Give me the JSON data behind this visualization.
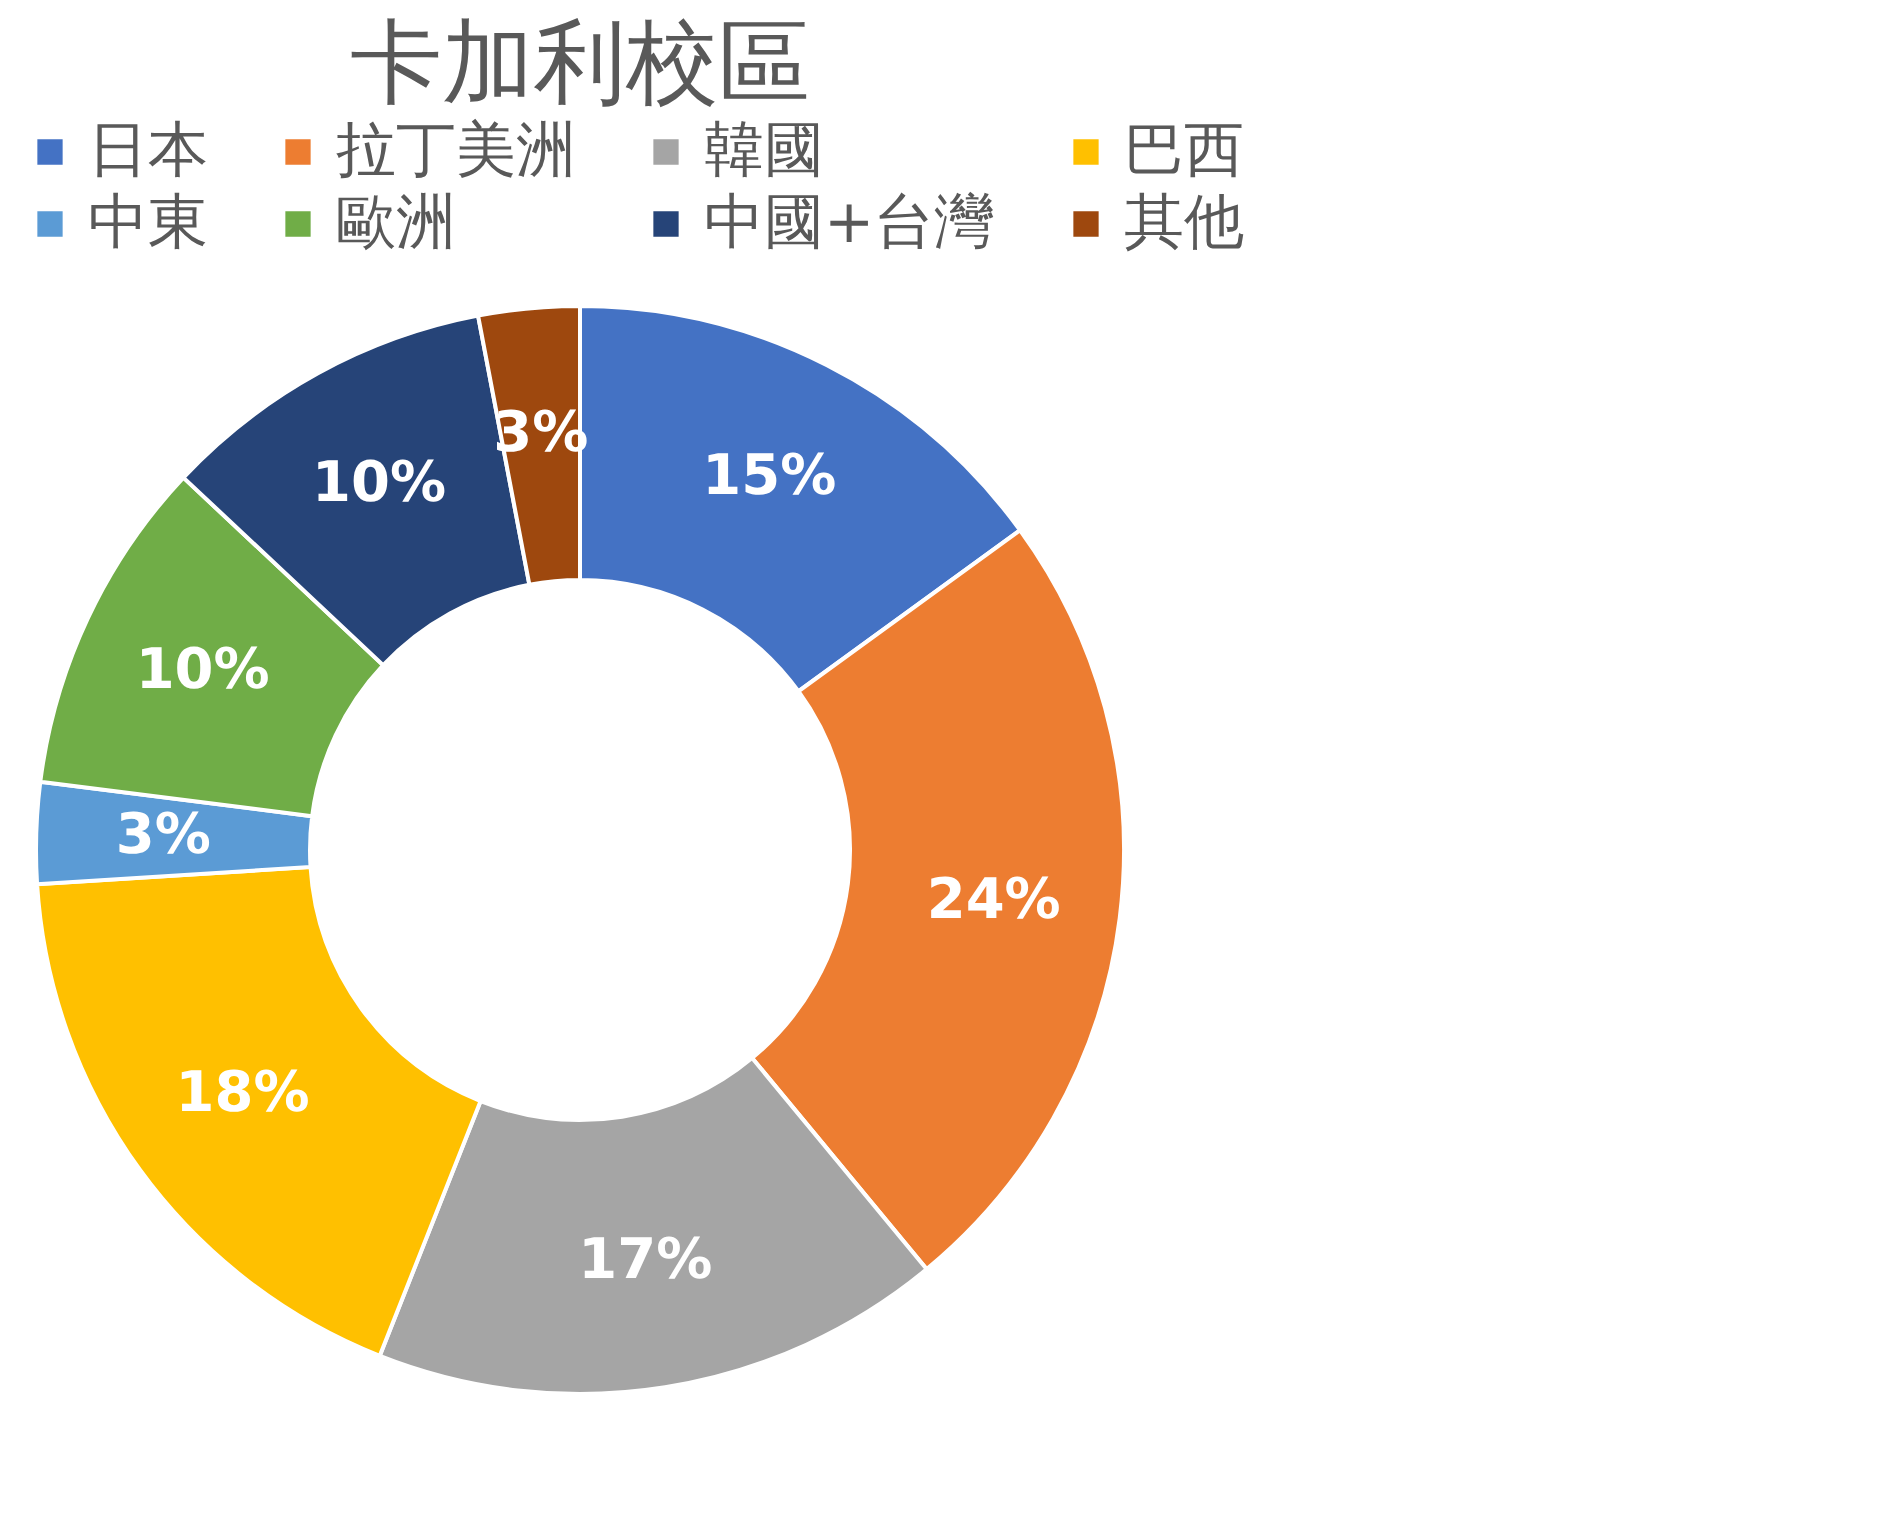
{
  "chart_data": {
    "type": "donut",
    "title": "卡加利校區",
    "categories": [
      "日本",
      "拉丁美洲",
      "韓國",
      "巴西",
      "中東",
      "歐洲",
      "中國+台灣",
      "其他"
    ],
    "values": [
      15,
      24,
      17,
      18,
      3,
      10,
      10,
      3
    ],
    "colors": [
      "#4472c4",
      "#ed7d31",
      "#a5a5a5",
      "#ffc000",
      "#5b9bd5",
      "#70ad47",
      "#264478",
      "#9e480e"
    ],
    "value_labels": [
      "15%",
      "24%",
      "17%",
      "18%",
      "3%",
      "10%",
      "10%",
      "3%"
    ],
    "legend": "top"
  }
}
